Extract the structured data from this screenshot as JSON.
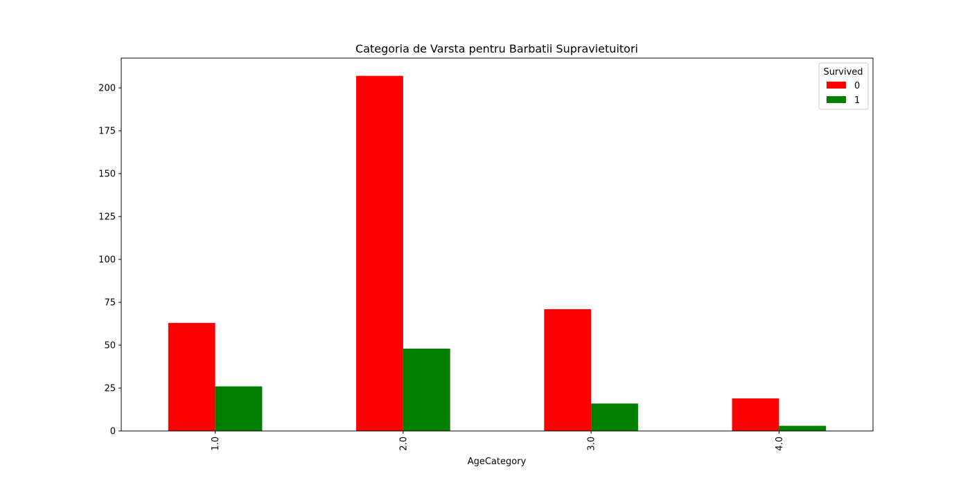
{
  "chart_data": {
    "type": "bar",
    "title": "Categoria de Varsta pentru Barbatii Supravietuitori",
    "xlabel": "AgeCategory",
    "ylabel": "",
    "categories": [
      "1.0",
      "2.0",
      "3.0",
      "4.0"
    ],
    "series": [
      {
        "name": "0",
        "color": "#ff0000",
        "values": [
          63,
          207,
          71,
          19
        ]
      },
      {
        "name": "1",
        "color": "#008000",
        "values": [
          26,
          48,
          16,
          3
        ]
      }
    ],
    "ylim": [
      0,
      217.35
    ],
    "yticks": [
      0,
      25,
      50,
      75,
      100,
      125,
      150,
      175,
      200
    ],
    "ytick_labels": [
      "0",
      "25",
      "50",
      "75",
      "100",
      "125",
      "150",
      "175",
      "200"
    ],
    "xtick_rotation": "vertical",
    "grid": false,
    "legend": {
      "title": "Survived",
      "placement": "upper-right",
      "entries": [
        "0",
        "1"
      ]
    }
  }
}
